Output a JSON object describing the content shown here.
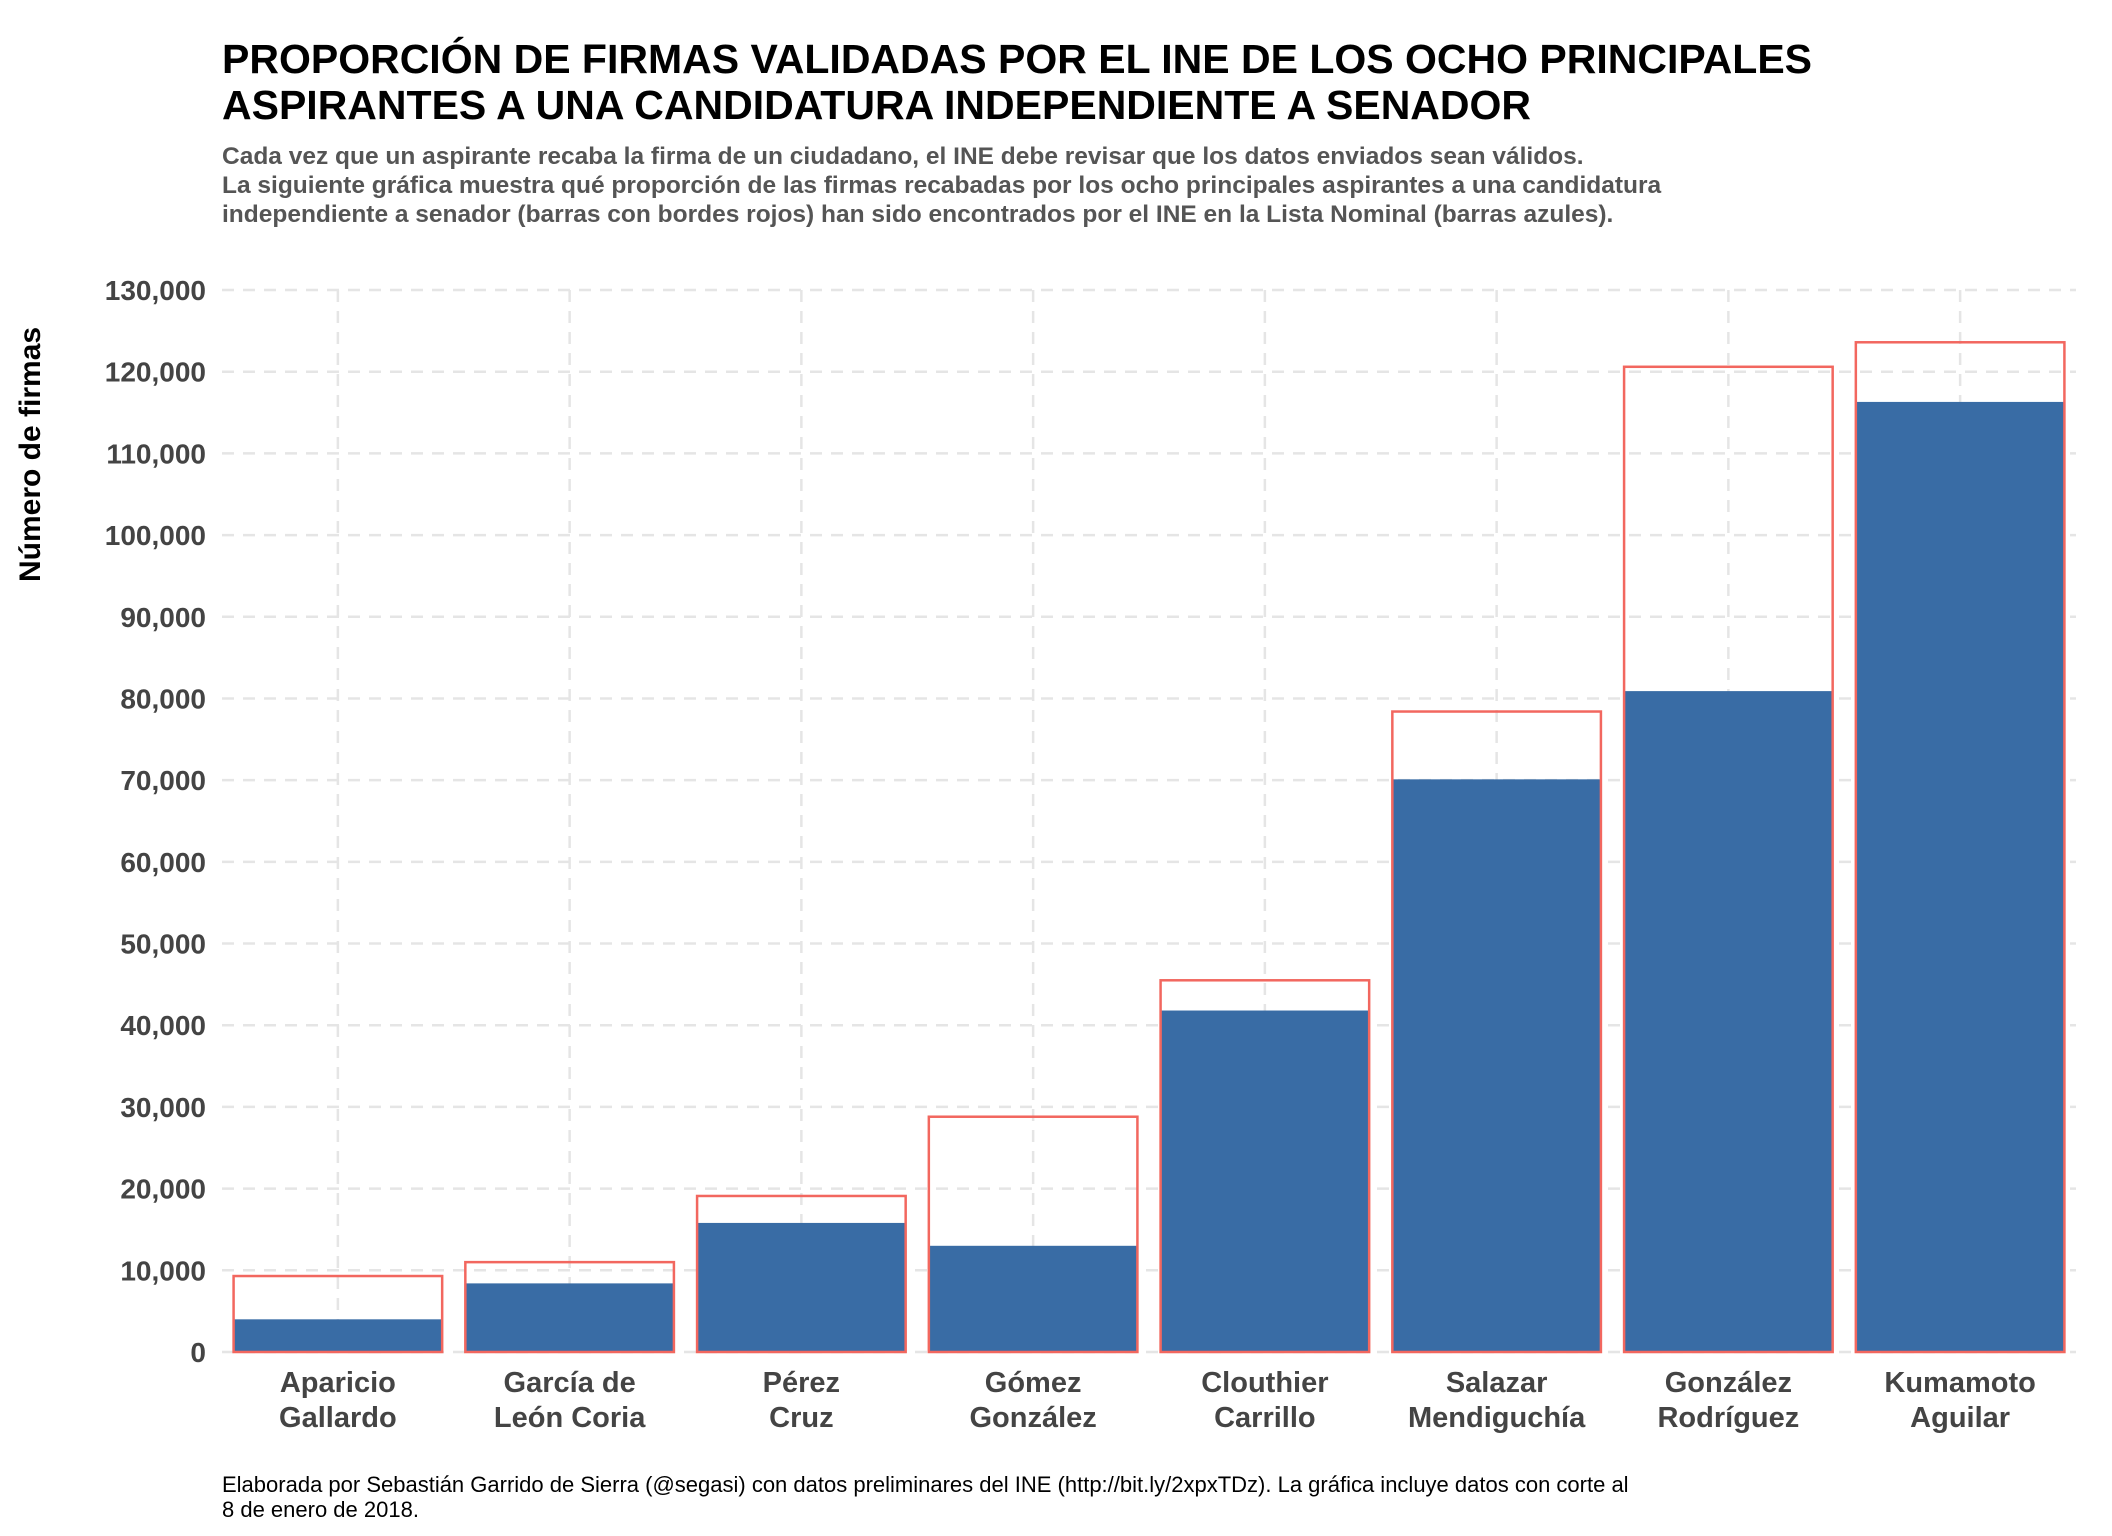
{
  "title_lines": [
    "PROPORCIÓN DE FIRMAS VALIDADAS POR EL INE DE LOS OCHO PRINCIPALES",
    "ASPIRANTES A UNA CANDIDATURA INDEPENDIENTE A SENADOR"
  ],
  "subtitle_lines": [
    "Cada vez que un aspirante recaba la firma de un ciudadano, el INE debe revisar que los datos enviados sean válidos.",
    "La siguiente gráfica muestra qué proporción de las firmas recabadas por los ocho principales aspirantes a una candidatura",
    "independiente a senador (barras con bordes rojos) han sido encontrados por el INE en la Lista Nominal (barras azules)."
  ],
  "caption_lines": [
    "Elaborada por Sebastián Garrido de Sierra (@segasi) con datos preliminares del INE (http://bit.ly/2xpxTDz). La gráfica incluye datos con corte al",
    "8 de enero de 2018."
  ],
  "colors": {
    "validated_fill": "#396ca5",
    "collected_border": "#f2675f",
    "grid": "#e5e5e5"
  },
  "chart_data": {
    "type": "bar",
    "ylabel": "Número de firmas",
    "xlabel": "",
    "ylim": [
      0,
      130000
    ],
    "yticks": [
      0,
      10000,
      20000,
      30000,
      40000,
      50000,
      60000,
      70000,
      80000,
      90000,
      100000,
      110000,
      120000,
      130000
    ],
    "ytick_labels": [
      "0",
      "10,000",
      "20,000",
      "30,000",
      "40,000",
      "50,000",
      "60,000",
      "70,000",
      "80,000",
      "90,000",
      "100,000",
      "110,000",
      "120,000",
      "130,000"
    ],
    "grid": true,
    "categories": [
      [
        "Aparicio",
        "Gallardo"
      ],
      [
        "García de",
        "León Coria"
      ],
      [
        "Pérez",
        "Cruz"
      ],
      [
        "Gómez",
        "González"
      ],
      [
        "Clouthier",
        "Carrillo"
      ],
      [
        "Salazar",
        "Mendiguchía"
      ],
      [
        "González",
        "Rodríguez"
      ],
      [
        "Kumamoto",
        "Aguilar"
      ]
    ],
    "series": [
      {
        "values": [
          9300,
          11000,
          19100,
          28800,
          45500,
          78400,
          120600,
          123600
        ]
      },
      {
        "values": [
          4000,
          8400,
          15800,
          13000,
          41800,
          70100,
          80900,
          116300
        ]
      }
    ]
  }
}
